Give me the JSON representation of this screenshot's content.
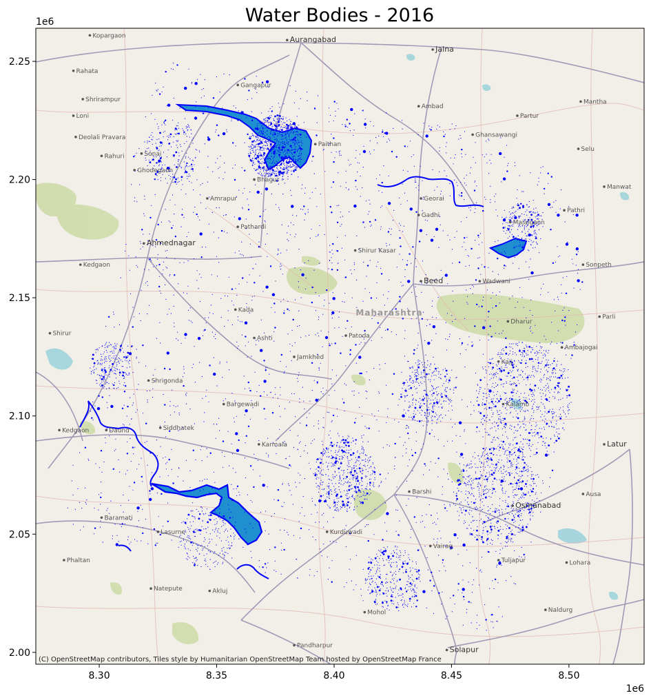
{
  "chart_data": {
    "type": "map",
    "title": "Water Bodies - 2016",
    "x_ticks": [
      "8.30",
      "8.35",
      "8.40",
      "8.45",
      "8.50"
    ],
    "x_tick_values": [
      8300000,
      8350000,
      8400000,
      8450000,
      8500000
    ],
    "y_ticks": [
      "2.00",
      "2.05",
      "2.10",
      "2.15",
      "2.20",
      "2.25"
    ],
    "y_tick_values": [
      2000000,
      2050000,
      2100000,
      2150000,
      2200000,
      2250000
    ],
    "x_offset": "1e6",
    "y_offset": "1e6",
    "xlim": [
      8273000,
      8532000
    ],
    "ylim": [
      1995000,
      2264000
    ],
    "feature_color": "#0000ff",
    "reservoir_fill": "#1f8fd0",
    "basemap_background": "#f2efe9",
    "attribution": "(C) OpenStreetMap contributors, Tiles style by Humanitarian OpenStreetMap Team hosted by OpenStreetMap France",
    "region_label": "Maharashtra",
    "places": [
      {
        "name": "Kopargaon",
        "x": 8296000,
        "y": 2261000
      },
      {
        "name": "Aurangabad",
        "x": 8380000,
        "y": 2259000
      },
      {
        "name": "Jalna",
        "x": 8442000,
        "y": 2255000
      },
      {
        "name": "Rahata",
        "x": 8289000,
        "y": 2246000
      },
      {
        "name": "Gangapur",
        "x": 8359000,
        "y": 2240000
      },
      {
        "name": "Shrirampur",
        "x": 8293000,
        "y": 2234000
      },
      {
        "name": "Ambad",
        "x": 8436000,
        "y": 2231000
      },
      {
        "name": "Mantha",
        "x": 8505000,
        "y": 2233000
      },
      {
        "name": "Loni",
        "x": 8289000,
        "y": 2227000
      },
      {
        "name": "Partur",
        "x": 8478000,
        "y": 2227000
      },
      {
        "name": "Ghansawangi",
        "x": 8459000,
        "y": 2219000
      },
      {
        "name": "Deolali Pravara",
        "x": 8290000,
        "y": 2218000
      },
      {
        "name": "Paithan",
        "x": 8392000,
        "y": 2215000
      },
      {
        "name": "Selu",
        "x": 8504000,
        "y": 2213000
      },
      {
        "name": "Rahuri",
        "x": 8301000,
        "y": 2210000
      },
      {
        "name": "Sonai",
        "x": 8318000,
        "y": 2211000
      },
      {
        "name": "Ghodegaon",
        "x": 8315000,
        "y": 2204000
      },
      {
        "name": "Bhagur",
        "x": 8366000,
        "y": 2200000
      },
      {
        "name": "Manwat",
        "x": 8515000,
        "y": 2197000
      },
      {
        "name": "Georai",
        "x": 8437000,
        "y": 2192000
      },
      {
        "name": "Amrapur",
        "x": 8346000,
        "y": 2192000
      },
      {
        "name": "Pathri",
        "x": 8498000,
        "y": 2187000
      },
      {
        "name": "Gadhi",
        "x": 8436000,
        "y": 2185000
      },
      {
        "name": "Majalgaon",
        "x": 8475000,
        "y": 2182000
      },
      {
        "name": "Pathardi",
        "x": 8359000,
        "y": 2180000
      },
      {
        "name": "Ahmednagar",
        "x": 8319000,
        "y": 2173000
      },
      {
        "name": "Shirur Kasar",
        "x": 8409000,
        "y": 2170000
      },
      {
        "name": "Kedgaon",
        "x": 8292000,
        "y": 2164000
      },
      {
        "name": "Sonpeth",
        "x": 8506000,
        "y": 2164000
      },
      {
        "name": "Beed",
        "x": 8437000,
        "y": 2157000
      },
      {
        "name": "Wadwani",
        "x": 8462000,
        "y": 2157000
      },
      {
        "name": "Kada",
        "x": 8358000,
        "y": 2145000
      },
      {
        "name": "Dharur",
        "x": 8474000,
        "y": 2140000
      },
      {
        "name": "Parli",
        "x": 8513000,
        "y": 2142000
      },
      {
        "name": "Shirur",
        "x": 8279000,
        "y": 2135000
      },
      {
        "name": "Patoda",
        "x": 8405000,
        "y": 2134000
      },
      {
        "name": "Ashti",
        "x": 8366000,
        "y": 2133000
      },
      {
        "name": "Ambajogai",
        "x": 8497000,
        "y": 2129000
      },
      {
        "name": "Jamkhed",
        "x": 8383000,
        "y": 2125000
      },
      {
        "name": "Kaij",
        "x": 8470000,
        "y": 2123000
      },
      {
        "name": "Shrigonda",
        "x": 8321000,
        "y": 2115000
      },
      {
        "name": "Bargewadi",
        "x": 8353000,
        "y": 2105000
      },
      {
        "name": "Kalamb",
        "x": 8472000,
        "y": 2105000
      },
      {
        "name": "Kedgaon",
        "x": 8283000,
        "y": 2094000
      },
      {
        "name": "Daund",
        "x": 8303000,
        "y": 2094000
      },
      {
        "name": "Siddhatek",
        "x": 8326000,
        "y": 2095000
      },
      {
        "name": "Karmala",
        "x": 8368000,
        "y": 2088000
      },
      {
        "name": "Latur",
        "x": 8515000,
        "y": 2088000
      },
      {
        "name": "Barshi",
        "x": 8432000,
        "y": 2068000
      },
      {
        "name": "Osmanabad",
        "x": 8476000,
        "y": 2062000
      },
      {
        "name": "Ausa",
        "x": 8506000,
        "y": 2067000
      },
      {
        "name": "Baramati",
        "x": 8301000,
        "y": 2057000
      },
      {
        "name": "Lasurne",
        "x": 8325000,
        "y": 2051000
      },
      {
        "name": "Kurduwadi",
        "x": 8397000,
        "y": 2051000
      },
      {
        "name": "Vairag",
        "x": 8441000,
        "y": 2045000
      },
      {
        "name": "Tuljapur",
        "x": 8470000,
        "y": 2039000
      },
      {
        "name": "Phaltan",
        "x": 8285000,
        "y": 2039000
      },
      {
        "name": "Lohara",
        "x": 8499000,
        "y": 2038000
      },
      {
        "name": "Natepute",
        "x": 8322000,
        "y": 2027000
      },
      {
        "name": "Akluj",
        "x": 8347000,
        "y": 2026000
      },
      {
        "name": "Naldurg",
        "x": 8490000,
        "y": 2018000
      },
      {
        "name": "Mohol",
        "x": 8413000,
        "y": 2017000
      },
      {
        "name": "Pandharpur",
        "x": 8383000,
        "y": 2003000
      },
      {
        "name": "Solapur",
        "x": 8448000,
        "y": 2001000
      }
    ]
  }
}
